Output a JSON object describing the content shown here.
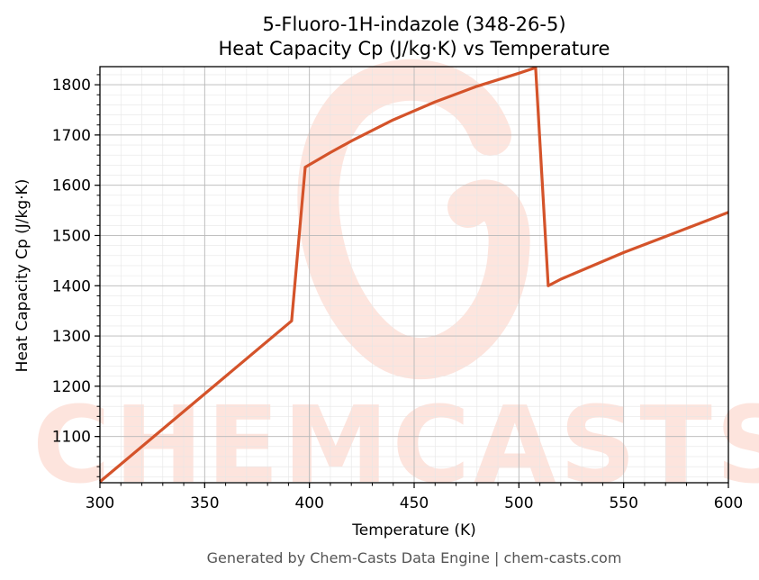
{
  "chart_data": {
    "type": "line",
    "title": "5-Fluoro-1H-indazole (348-26-5)",
    "subtitle": "Heat Capacity Cp (J/kg·K) vs Temperature",
    "xlabel": "Temperature (K)",
    "ylabel": "Heat Capacity Cp (J/kg·K)",
    "xlim": [
      300,
      600
    ],
    "ylim": [
      1008,
      1836
    ],
    "xticks": [
      300,
      350,
      400,
      450,
      500,
      550,
      600
    ],
    "yticks": [
      1100,
      1200,
      1300,
      1400,
      1500,
      1600,
      1700,
      1800
    ],
    "grid": true,
    "line_color": "#d4532a",
    "series": [
      {
        "x": [
          300,
          391.5,
          398,
          410,
          420,
          440,
          460,
          480,
          500,
          508,
          514,
          520,
          550,
          570,
          600
        ],
        "y": [
          1010,
          1330,
          1636,
          1665,
          1688,
          1730,
          1766,
          1797,
          1823,
          1834,
          1400,
          1413,
          1466,
          1498,
          1546
        ]
      }
    ]
  },
  "footer": "Generated by Chem-Casts Data Engine | chem-casts.com",
  "watermark": "CHEMCASTS",
  "watermark_color": "#fde0d8"
}
